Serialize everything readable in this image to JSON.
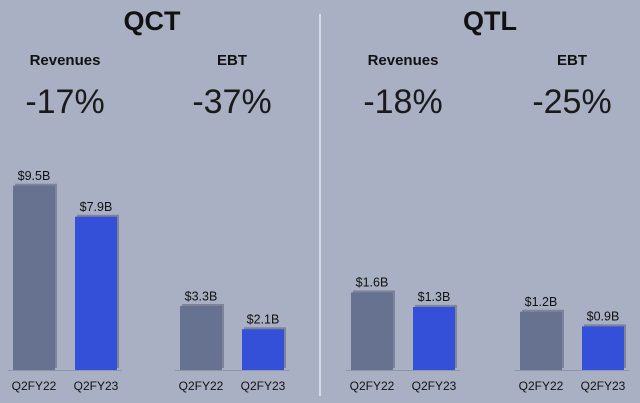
{
  "sections": [
    "QCT",
    "QTL"
  ],
  "chart_data": [
    {
      "type": "bar",
      "title": "Revenues",
      "annotation": "-17%",
      "categories": [
        "Q2FY22",
        "Q2FY23"
      ],
      "values": [
        9.5,
        7.9
      ],
      "value_labels": [
        "$9.5B",
        "$7.9B"
      ],
      "colors": [
        "#66728f",
        "#3450d8"
      ],
      "ylim": [
        0,
        10
      ]
    },
    {
      "type": "bar",
      "title": "EBT",
      "annotation": "-37%",
      "categories": [
        "Q2FY22",
        "Q2FY23"
      ],
      "values": [
        3.3,
        2.1
      ],
      "value_labels": [
        "$3.3B",
        "$2.1B"
      ],
      "colors": [
        "#66728f",
        "#3450d8"
      ],
      "ylim": [
        0,
        10
      ]
    },
    {
      "type": "bar",
      "title": "Revenues",
      "annotation": "-18%",
      "categories": [
        "Q2FY22",
        "Q2FY23"
      ],
      "values": [
        1.6,
        1.3
      ],
      "value_labels": [
        "$1.6B",
        "$1.3B"
      ],
      "colors": [
        "#66728f",
        "#3450d8"
      ],
      "ylim": [
        0,
        4
      ]
    },
    {
      "type": "bar",
      "title": "EBT",
      "annotation": "-25%",
      "categories": [
        "Q2FY22",
        "Q2FY23"
      ],
      "values": [
        1.2,
        0.9
      ],
      "value_labels": [
        "$1.2B",
        "$0.9B"
      ],
      "colors": [
        "#66728f",
        "#3450d8"
      ],
      "ylim": [
        0,
        4
      ]
    }
  ]
}
